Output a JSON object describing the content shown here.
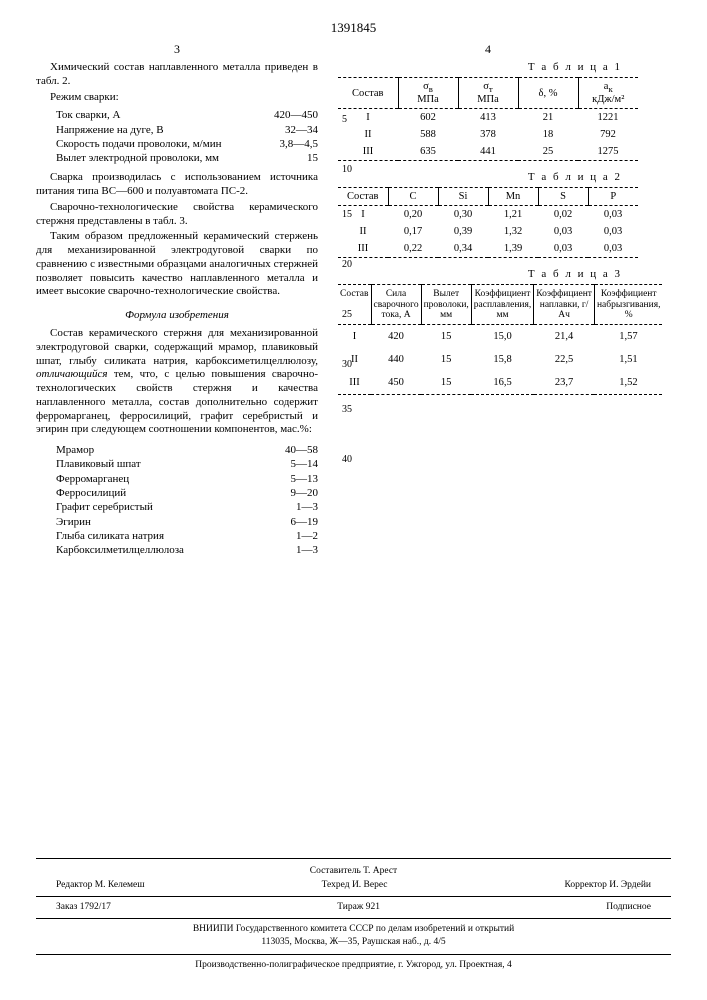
{
  "patent_number": "1391845",
  "left_col_num": "3",
  "right_col_num": "4",
  "para1": "Химический состав наплавленного металла приведен в табл. 2.",
  "para2": "Режим сварки:",
  "welding_params": [
    {
      "label": "Ток сварки, А",
      "value": "420—450"
    },
    {
      "label": "Напряжение на дуге, В",
      "value": "32—34"
    },
    {
      "label": "Скорость подачи проволоки, м/мин",
      "value": "3,8—4,5"
    },
    {
      "label": "Вылет электродной проволоки, мм",
      "value": "15"
    }
  ],
  "para3": "Сварка производилась с использованием источника питания типа ВС—600 и полуавтомата ПС-2.",
  "para4": "Сварочно-технологические свойства керамического стержня представлены в табл. 3.",
  "para5": "Таким образом предложенный керамический стержень для механизированной электродуговой сварки по сравнению с известными образцами аналогичных стержней позволяет повысить качество наплавленного металла и имеет высокие сварочно-технологические свойства.",
  "formula_title": "Формула изобретения",
  "para6": "Состав керамического стержня для механизированной электродуговой сварки, содержащий мрамор, плавиковый шпат, глыбу силиката натрия, карбоксиметилцеллюлозу, отличающийся тем, что, с целью повышения сварочно-технологических свойств стержня и качества наплавленного металла, состав дополнительно содержит ферромарганец, ферросилиций, графит серебристый и эгирин при следующем соотношении компонентов, мас.%:",
  "components": [
    {
      "label": "Мрамор",
      "value": "40—58"
    },
    {
      "label": "Плавиковый шпат",
      "value": "5—14"
    },
    {
      "label": "Ферромарганец",
      "value": "5—13"
    },
    {
      "label": "Ферросилиций",
      "value": "9—20"
    },
    {
      "label": "Графит серебристый",
      "value": "1—3"
    },
    {
      "label": "Эгирин",
      "value": "6—19"
    },
    {
      "label": "Глыба силиката натрия",
      "value": "1—2"
    },
    {
      "label": "Карбоксилметилцеллюлоза",
      "value": "1—3"
    }
  ],
  "line_nums": [
    "5",
    "10",
    "15",
    "20",
    "25",
    "30",
    "35",
    "40"
  ],
  "table1": {
    "caption": "Т а б л и ц а 1",
    "headers": [
      "Состав",
      "σ<sub>в</sub><br>МПа",
      "σ<sub>т</sub><br>МПа",
      "δ, %",
      "a<sub>к</sub><br>кДж/м²"
    ],
    "rows": [
      [
        "I",
        "602",
        "413",
        "21",
        "1221"
      ],
      [
        "II",
        "588",
        "378",
        "18",
        "792"
      ],
      [
        "III",
        "635",
        "441",
        "25",
        "1275"
      ]
    ]
  },
  "table2": {
    "caption": "Т а б л и ц а 2",
    "headers": [
      "Состав",
      "C",
      "Si",
      "Mn",
      "S",
      "P"
    ],
    "rows": [
      [
        "I",
        "0,20",
        "0,30",
        "1,21",
        "0,02",
        "0,03"
      ],
      [
        "II",
        "0,17",
        "0,39",
        "1,32",
        "0,03",
        "0,03"
      ],
      [
        "III",
        "0,22",
        "0,34",
        "1,39",
        "0,03",
        "0,03"
      ]
    ]
  },
  "table3": {
    "caption": "Т а б л и ц а 3",
    "headers": [
      "Состав",
      "Сила сварочного тока, А",
      "Вылет проволоки, мм",
      "Коэффициент расплавления, мм",
      "Коэффициент наплавки, г/Ач",
      "Коэффициент набрызгивания, %"
    ],
    "rows": [
      [
        "I",
        "420",
        "15",
        "15,0",
        "21,4",
        "1,57"
      ],
      [
        "II",
        "440",
        "15",
        "15,8",
        "22,5",
        "1,51"
      ],
      [
        "III",
        "450",
        "15",
        "16,5",
        "23,7",
        "1,52"
      ]
    ]
  },
  "footer": {
    "compiler": "Составитель Т. Арест",
    "row1": [
      "Редактор М. Келемеш",
      "Техред И. Верес",
      "Корректор И. Эрдейи"
    ],
    "row2": [
      "Заказ 1792/17",
      "Тираж 921",
      "Подписное"
    ],
    "line1": "ВНИИПИ Государственного комитета СССР по делам изобретений и открытий",
    "line2": "113035, Москва, Ж—35, Раушская наб., д. 4/5",
    "line3": "Производственно-полиграфическое предприятие, г. Ужгород, ул. Проектная, 4"
  }
}
